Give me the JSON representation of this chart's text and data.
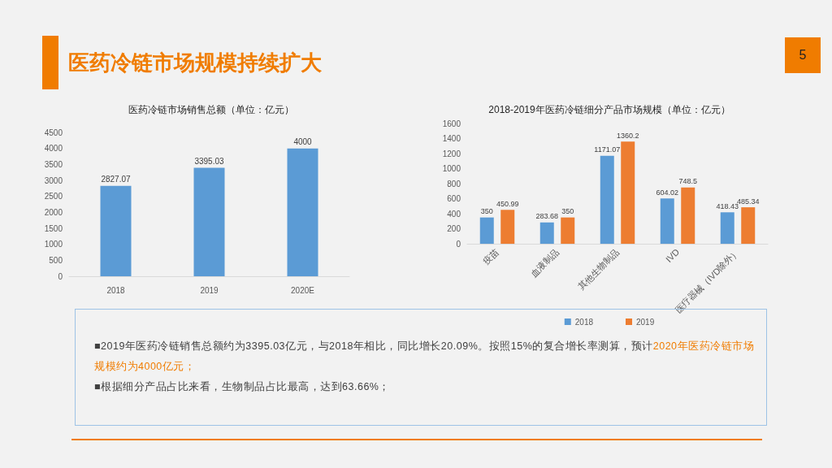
{
  "chart_data": [
    {
      "type": "bar",
      "title": "医药冷链市场销售总额（单位：亿元）",
      "categories": [
        "2018",
        "2019",
        "2020E"
      ],
      "values": [
        2827.07,
        3395.03,
        4000
      ],
      "color": "#5b9bd5",
      "ylim": [
        0,
        4500
      ],
      "yticks": [
        0,
        500,
        1000,
        1500,
        2000,
        2500,
        3000,
        3500,
        4000,
        4500
      ],
      "grid": false,
      "data_labels": true
    },
    {
      "type": "bar",
      "title": "2018-2019年医药冷链细分产品市场规模（单位：亿元）",
      "categories": [
        "疫苗",
        "血液制品",
        "其他生物制品",
        "IVD",
        "医疗器械（IVD除外）"
      ],
      "series": [
        {
          "name": "2018",
          "color": "#5b9bd5",
          "values": [
            350,
            283.68,
            1171.07,
            604.02,
            418.43
          ]
        },
        {
          "name": "2019",
          "color": "#ed7d31",
          "values": [
            450.99,
            350,
            1360.2,
            748.5,
            485.34
          ]
        }
      ],
      "ylim": [
        0,
        1600
      ],
      "yticks": [
        0,
        200,
        400,
        600,
        800,
        1000,
        1200,
        1400,
        1600
      ],
      "grid": false,
      "legend": "bottom",
      "data_labels": true
    },
    {
      "type": "other",
      "title": "医药冷链市场规模持续扩大",
      "annotations": [
        "5",
        "■2019年医药冷链销售总额约为3395.03亿元，与2018年相比，同比增长20.09%。按照15%的复合增长率测算，预计",
        "2020年医药冷链市场规模约为4000亿元；",
        "■根据细分产品占比来看，生物制品占比最高，达到63.66%；"
      ]
    }
  ]
}
